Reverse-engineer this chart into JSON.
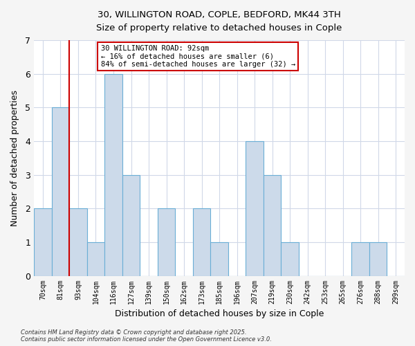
{
  "title_line1": "30, WILLINGTON ROAD, COPLE, BEDFORD, MK44 3TH",
  "title_line2": "Size of property relative to detached houses in Cople",
  "xlabel": "Distribution of detached houses by size in Cople",
  "ylabel": "Number of detached properties",
  "bins": [
    "70sqm",
    "81sqm",
    "93sqm",
    "104sqm",
    "116sqm",
    "127sqm",
    "139sqm",
    "150sqm",
    "162sqm",
    "173sqm",
    "185sqm",
    "196sqm",
    "207sqm",
    "219sqm",
    "230sqm",
    "242sqm",
    "253sqm",
    "265sqm",
    "276sqm",
    "288sqm",
    "299sqm"
  ],
  "bar_heights": [
    2,
    5,
    2,
    1,
    6,
    3,
    0,
    2,
    0,
    2,
    1,
    0,
    4,
    3,
    1,
    0,
    0,
    0,
    1,
    1,
    0
  ],
  "bar_color": "#ccdaea",
  "bar_edge_color": "#6aaed6",
  "bar_edge_width": 0.8,
  "grid_color": "#d0d8e8",
  "bg_color": "#ffffff",
  "fig_bg_color": "#f5f5f5",
  "property_line_x": 2,
  "property_line_color": "#cc0000",
  "annotation_text": "30 WILLINGTON ROAD: 92sqm\n← 16% of detached houses are smaller (6)\n84% of semi-detached houses are larger (32) →",
  "annotation_box_color": "#ffffff",
  "annotation_box_edge_color": "#cc0000",
  "ylim": [
    0,
    7
  ],
  "yticks": [
    0,
    1,
    2,
    3,
    4,
    5,
    6,
    7
  ],
  "footnote1": "Contains HM Land Registry data © Crown copyright and database right 2025.",
  "footnote2": "Contains public sector information licensed under the Open Government Licence v3.0."
}
